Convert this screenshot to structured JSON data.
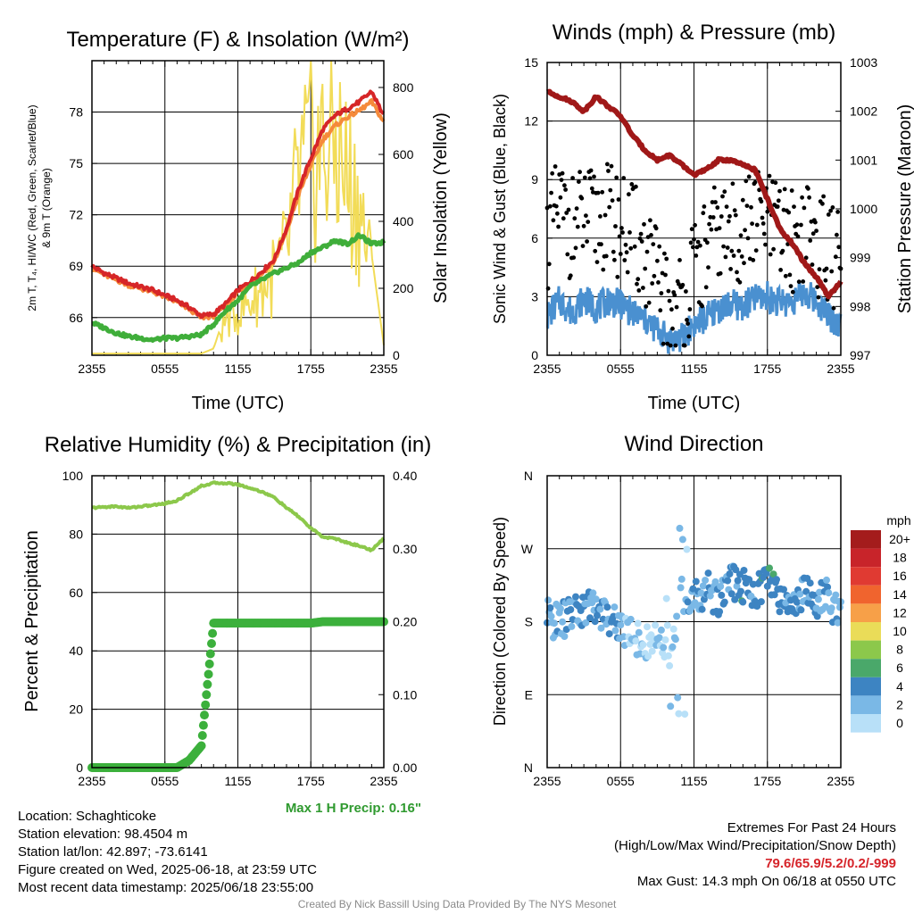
{
  "chart_data": [
    {
      "type": "line",
      "title": "Temperature (F) & Insolation (W/m²)",
      "xlabel": "Time (UTC)",
      "ylabel_lines": [
        "2m T, T₄, HI/WC (Red, Green, Scarlet/Blue)",
        "& 9m T (Orange)"
      ],
      "ylabel_right": "Solar Insolation (Yellow)",
      "x_ticks": [
        "2355",
        "0555",
        "1155",
        "1755",
        "2355"
      ],
      "y_ticks": [
        66,
        69,
        72,
        75,
        78
      ],
      "y_ticks_right": [
        0,
        200,
        400,
        600,
        800
      ],
      "ylim": [
        63.8,
        81.0
      ],
      "ylim_right": [
        0,
        880
      ],
      "x_hours": [
        0,
        1,
        2,
        3,
        4,
        5,
        6,
        7,
        8,
        9,
        10,
        11,
        12,
        13,
        14,
        15,
        16,
        17,
        18,
        19,
        20,
        21,
        22,
        23,
        24
      ],
      "series": [
        {
          "color": "#d62628",
          "axis": "left",
          "values": [
            69.0,
            68.6,
            68.3,
            68.0,
            67.8,
            67.6,
            67.3,
            67.0,
            66.6,
            66.1,
            66.2,
            66.8,
            67.6,
            68.1,
            68.7,
            69.4,
            71.2,
            73.5,
            75.3,
            77.0,
            77.8,
            78.2,
            78.6,
            79.2,
            77.8
          ]
        },
        {
          "color": "#f58a3a",
          "axis": "left",
          "values": [
            68.9,
            68.5,
            68.2,
            67.9,
            67.7,
            67.5,
            67.2,
            66.9,
            66.5,
            66.0,
            66.1,
            66.7,
            67.5,
            68.0,
            68.6,
            69.3,
            71.0,
            73.2,
            74.9,
            76.4,
            77.2,
            77.7,
            78.1,
            78.6,
            77.4
          ]
        },
        {
          "color": "#3fae3a",
          "axis": "left",
          "values": [
            65.7,
            65.4,
            65.1,
            64.9,
            64.8,
            64.7,
            64.8,
            64.8,
            64.9,
            65.0,
            65.6,
            66.4,
            67.0,
            67.8,
            68.2,
            68.6,
            68.9,
            69.2,
            69.8,
            70.1,
            70.5,
            70.3,
            70.8,
            70.3,
            70.4
          ]
        },
        {
          "color": "#f2dc58",
          "axis": "right",
          "values": [
            5,
            5,
            5,
            5,
            5,
            5,
            5,
            5,
            5,
            5,
            20,
            130,
            160,
            200,
            250,
            300,
            380,
            650,
            740,
            760,
            800,
            650,
            560,
            300,
            30
          ]
        }
      ]
    },
    {
      "type": "scatter",
      "title": "Winds (mph) & Pressure (mb)",
      "xlabel": "Time (UTC)",
      "ylabel": "Sonic Wind & Gust (Blue, Black)",
      "ylabel_right": "Station Pressure (Maroon)",
      "x_ticks": [
        "2355",
        "0555",
        "1155",
        "1755",
        "2355"
      ],
      "y_ticks": [
        0,
        3,
        6,
        9,
        12,
        15
      ],
      "y_ticks_right": [
        997,
        998,
        999,
        1000,
        1001,
        1002,
        1003
      ],
      "ylim": [
        0,
        15
      ],
      "ylim_right": [
        997,
        1003
      ],
      "x_hours": [
        0,
        1,
        2,
        3,
        4,
        5,
        6,
        7,
        8,
        9,
        10,
        11,
        12,
        13,
        14,
        15,
        16,
        17,
        18,
        19,
        20,
        21,
        22,
        23,
        24
      ],
      "series": [
        {
          "color": "#a01818",
          "axis": "right",
          "values": [
            1002.4,
            1002.3,
            1002.2,
            1002.0,
            1002.3,
            1002.1,
            1001.9,
            1001.5,
            1001.2,
            1001.0,
            1001.1,
            1000.9,
            1000.7,
            1000.8,
            1001.0,
            1001.0,
            1000.9,
            1000.8,
            1000.2,
            999.6,
            999.3,
            998.9,
            998.6,
            998.2,
            998.5
          ]
        },
        {
          "color": "#4a90d0",
          "axis": "left",
          "values": [
            2.0,
            2.8,
            2.2,
            2.9,
            2.4,
            2.8,
            2.6,
            2.2,
            1.8,
            1.3,
            0.8,
            0.9,
            1.6,
            1.9,
            2.4,
            2.6,
            2.5,
            2.9,
            3.0,
            2.7,
            2.8,
            3.2,
            2.8,
            2.1,
            1.5
          ]
        },
        {
          "color": "#000000",
          "axis": "left",
          "mode": "points",
          "values": [
            6.0,
            7.5,
            6.5,
            7.0,
            6.8,
            7.2,
            6.6,
            6.2,
            5.0,
            3.8,
            2.3,
            2.6,
            4.2,
            5.3,
            6.3,
            6.1,
            6.5,
            7.0,
            6.8,
            6.2,
            5.9,
            6.4,
            5.8,
            5.2,
            4.8
          ]
        }
      ]
    },
    {
      "type": "line",
      "title": "Relative Humidity (%) & Precipitation (in)",
      "xlabel": "",
      "ylabel": "Percent & Precipitation",
      "x_ticks": [
        "2355",
        "0555",
        "1155",
        "1755",
        "2355"
      ],
      "y_ticks": [
        0,
        20,
        40,
        60,
        80,
        100
      ],
      "y_ticks_right": [
        "0.00",
        "0.10",
        "0.20",
        "0.30",
        "0.40"
      ],
      "ylim": [
        0,
        100
      ],
      "ylim_right": [
        0,
        0.4
      ],
      "x_hours": [
        0,
        1,
        2,
        3,
        4,
        5,
        6,
        7,
        8,
        9,
        10,
        11,
        12,
        13,
        14,
        15,
        16,
        17,
        18,
        19,
        20,
        21,
        22,
        23,
        24
      ],
      "series": [
        {
          "color": "#8cc84b",
          "axis": "left",
          "values": [
            89.0,
            89.3,
            89.5,
            89.0,
            89.5,
            89.9,
            90.5,
            91.5,
            94.0,
            96.5,
            97.5,
            97.5,
            97.0,
            95.8,
            94.5,
            92.5,
            89.0,
            86.0,
            82.0,
            79.0,
            78.5,
            77.0,
            76.0,
            74.5,
            78.5
          ]
        },
        {
          "color": "#3cb03c",
          "axis": "right",
          "mode": "points",
          "values": [
            0.0,
            0.0,
            0.0,
            0.0,
            0.0,
            0.0,
            0.0,
            0.0,
            0.01,
            0.03,
            0.198,
            0.198,
            0.198,
            0.198,
            0.198,
            0.198,
            0.198,
            0.198,
            0.198,
            0.2,
            0.2,
            0.2,
            0.2,
            0.2,
            0.2
          ]
        }
      ],
      "annotation": "Max 1 H Precip: 0.16\""
    },
    {
      "type": "scatter",
      "title": "Wind Direction",
      "ylabel": "Direction (Colored By Speed)",
      "x_ticks": [
        "2355",
        "0555",
        "1155",
        "1755",
        "2355"
      ],
      "y_ticks": [
        "N",
        "E",
        "S",
        "W",
        "N"
      ],
      "ylim": [
        0,
        360
      ],
      "x_hours": [
        0,
        1,
        2,
        3,
        4,
        5,
        6,
        7,
        8,
        9,
        10,
        11,
        12,
        13,
        14,
        15,
        16,
        17,
        18,
        19,
        20,
        21,
        22,
        23,
        24
      ],
      "directions": [
        185,
        180,
        190,
        195,
        200,
        185,
        175,
        165,
        150,
        160,
        125,
        215,
        205,
        220,
        210,
        230,
        225,
        215,
        235,
        210,
        200,
        220,
        205,
        210,
        185
      ],
      "speeds": [
        2.5,
        2.0,
        3.0,
        3.5,
        3.0,
        2.5,
        2.0,
        1.5,
        1.0,
        0.6,
        0.5,
        1.5,
        2.5,
        3.0,
        3.5,
        3.5,
        4.0,
        4.0,
        4.5,
        4.0,
        3.5,
        3.5,
        3.0,
        2.5,
        2.0
      ],
      "legend": {
        "title": "mph",
        "labels": [
          "20+",
          "18",
          "16",
          "14",
          "12",
          "10",
          "8",
          "6",
          "4",
          "2",
          "0"
        ],
        "colors": [
          "#a41c1c",
          "#c8242a",
          "#e03a32",
          "#f0642e",
          "#f7a048",
          "#eadc58",
          "#8cc84b",
          "#4aa86a",
          "#3d84c2",
          "#7ab8e6",
          "#b8e0f8"
        ]
      }
    }
  ],
  "info_left": [
    "Location: Schaghticoke",
    "Station elevation: 98.4504 m",
    "Station lat/lon: 42.897; -73.6141",
    "Figure created on Wed, 2025-06-18, at 23:59 UTC",
    "Most recent data timestamp: 2025/06/18 23:55:00"
  ],
  "extremes": {
    "title": "Extremes For Past 24 Hours",
    "subtitle": "(High/Low/Max Wind/Precipitation/Snow Depth)",
    "values": "79.6/65.9/5.2/0.2/-999",
    "max_gust": "Max Gust: 14.3 mph On 06/18 at 0550 UTC"
  },
  "credit": "Created By Nick Bassill Using Data Provided By The NYS Mesonet"
}
